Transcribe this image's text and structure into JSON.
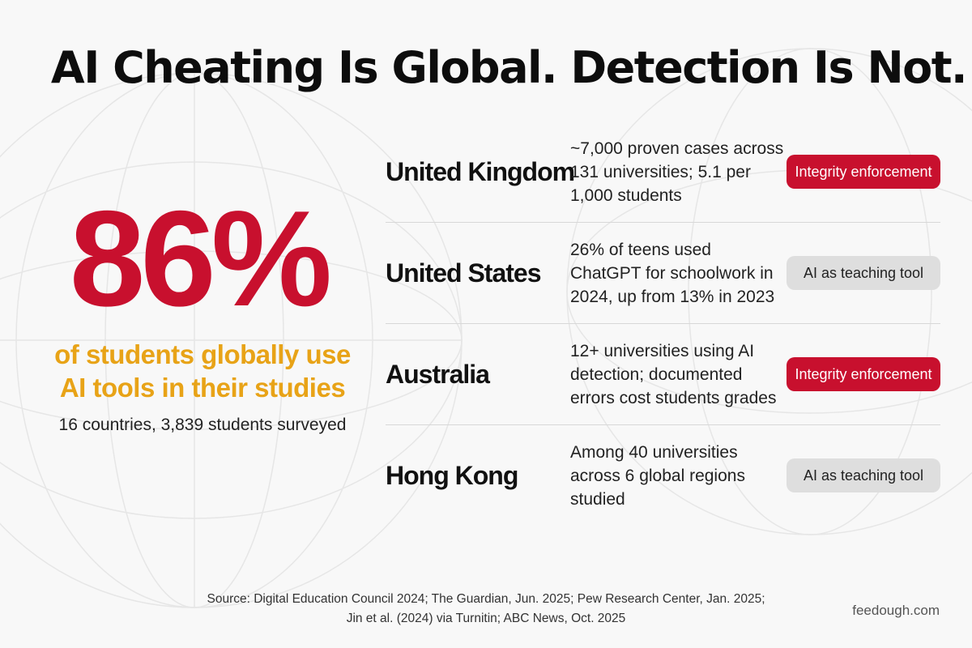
{
  "title": "AI Cheating Is Global. Detection Is Not.",
  "stat": {
    "value": "86%",
    "line1": "of students globally use",
    "line2": "AI tools in their studies",
    "survey": "16 countries, 3,839 students surveyed"
  },
  "rows": [
    {
      "country": "United Kingdom",
      "desc": "~7,000 proven cases across 131 universities; 5.1 per 1,000 students",
      "badge": "Integrity enforcement",
      "badge_type": "red"
    },
    {
      "country": "United States",
      "desc": "26% of teens used ChatGPT for schoolwork in 2024, up from 13% in 2023",
      "badge": "AI as teaching tool",
      "badge_type": "grey"
    },
    {
      "country": "Australia",
      "desc": "12+ universities using AI detection; documented errors cost students grades",
      "badge": "Integrity enforcement",
      "badge_type": "red"
    },
    {
      "country": "Hong Kong",
      "desc": "Among 40 universities across 6 global regions studied",
      "badge": "AI as teaching tool",
      "badge_type": "grey"
    }
  ],
  "source": {
    "line1": "Source: Digital Education Council 2024; The Guardian, Jun. 2025; Pew Research Center, Jan. 2025;",
    "line2": "Jin et al. (2024) via Turnitin; ABC News, Oct. 2025"
  },
  "brand": "feedough.com",
  "colors": {
    "accent_red": "#c8102e",
    "accent_yellow": "#e8a317",
    "badge_grey": "#dedede",
    "background": "#f8f8f8"
  }
}
